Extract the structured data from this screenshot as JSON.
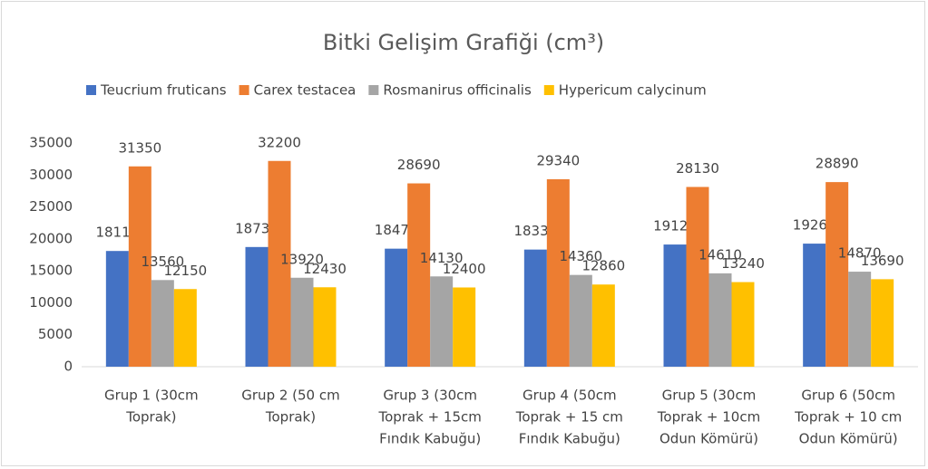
{
  "chart_data": {
    "type": "bar",
    "title": "Bitki Gelişim Grafiği (cm³)",
    "categories": [
      [
        "Grup 1 (30cm",
        "Toprak)"
      ],
      [
        "Grup 2 (50 cm",
        "Toprak)"
      ],
      [
        "Grup 3 (30cm",
        "Toprak + 15cm",
        "Fındık Kabuğu)"
      ],
      [
        "Grup 4 (50cm",
        "Toprak + 15 cm",
        "Fındık Kabuğu)"
      ],
      [
        "Grup 5 (30cm",
        "Toprak + 10cm",
        "Odun Kömürü)"
      ],
      [
        "Grup 6 (50cm",
        "Toprak + 10 cm",
        "Odun Kömürü)"
      ]
    ],
    "series": [
      {
        "name": "Teucrium fruticans",
        "color": "#4472c4",
        "values": [
          18110,
          18730,
          18470,
          18330,
          19120,
          19260
        ]
      },
      {
        "name": "Carex testacea",
        "color": "#ed7d31",
        "values": [
          31350,
          32200,
          28690,
          29340,
          28130,
          28890
        ]
      },
      {
        "name": "Rosmanirus officinalis",
        "color": "#a5a5a5",
        "values": [
          13560,
          13920,
          14130,
          14360,
          14610,
          14870
        ]
      },
      {
        "name": "Hypericum calycinum",
        "color": "#ffc000",
        "values": [
          12150,
          12430,
          12400,
          12860,
          13240,
          13690
        ]
      }
    ],
    "ylim": [
      0,
      35000
    ],
    "yticks": [
      0,
      5000,
      10000,
      15000,
      20000,
      25000,
      30000,
      35000
    ],
    "grid": false,
    "legend": "top"
  }
}
